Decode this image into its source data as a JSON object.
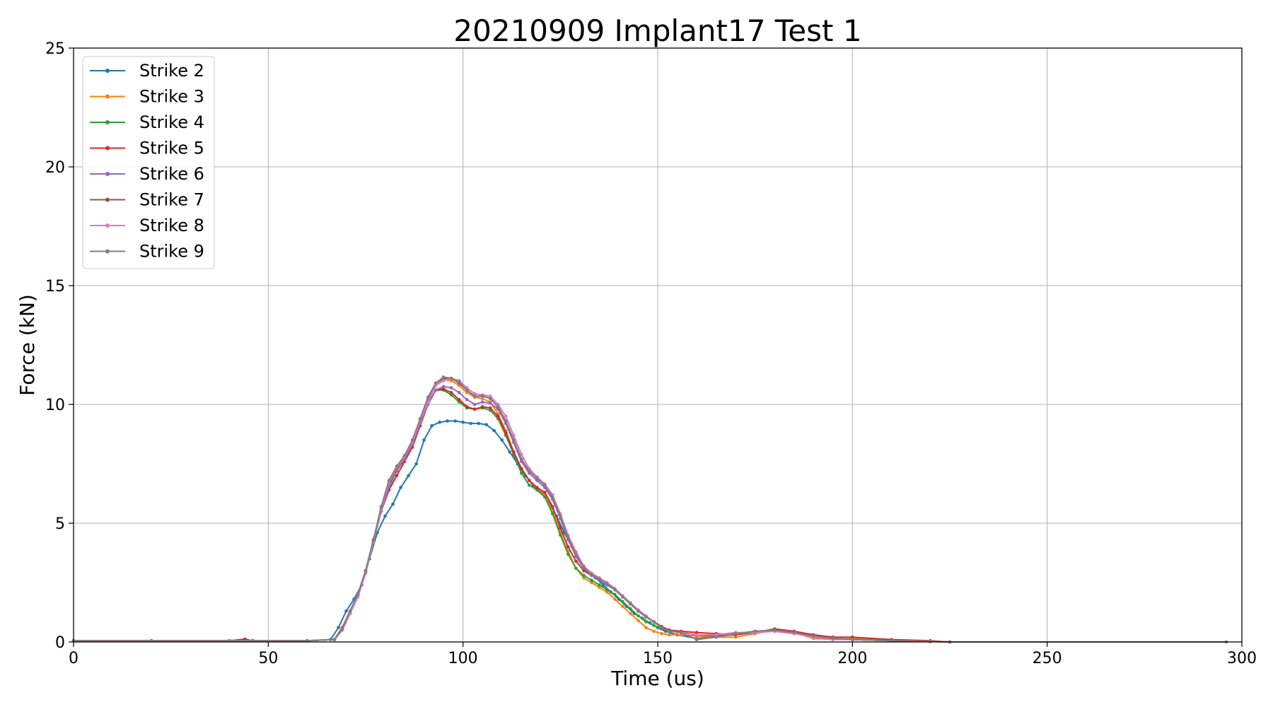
{
  "chart_data": {
    "type": "line",
    "title": "20210909 Implant17 Test 1",
    "xlabel": "Time (us)",
    "ylabel": "Force (kN)",
    "xlim": [
      0,
      300
    ],
    "ylim": [
      0,
      25
    ],
    "xticks": [
      0,
      50,
      100,
      150,
      200,
      250,
      300
    ],
    "yticks": [
      0,
      5,
      10,
      15,
      20,
      25
    ],
    "grid": true,
    "legend_position": "top-left",
    "markers": true,
    "series": [
      {
        "name": "Strike 2",
        "color": "#1f77b4",
        "x": [
          0,
          20,
          40,
          60,
          66,
          68,
          70,
          72,
          74,
          76,
          78,
          80,
          82,
          84,
          86,
          88,
          90,
          92,
          94,
          96,
          98,
          100,
          102,
          104,
          106,
          108,
          110,
          112,
          114,
          116,
          118,
          120,
          122,
          124,
          126,
          128,
          130,
          132,
          134,
          136,
          138,
          140,
          142,
          144,
          146,
          148,
          150,
          152,
          155,
          160,
          165,
          170,
          175,
          180,
          185,
          190,
          195,
          200,
          210,
          220,
          225
        ],
        "y": [
          0.05,
          0.05,
          0.05,
          0.05,
          0.1,
          0.6,
          1.3,
          1.8,
          2.4,
          3.5,
          4.6,
          5.3,
          5.8,
          6.5,
          7.0,
          7.5,
          8.5,
          9.1,
          9.25,
          9.3,
          9.3,
          9.25,
          9.2,
          9.2,
          9.15,
          8.9,
          8.5,
          8.0,
          7.5,
          7.0,
          6.6,
          6.3,
          5.9,
          5.3,
          4.6,
          4.0,
          3.4,
          3.0,
          2.7,
          2.4,
          2.1,
          1.8,
          1.5,
          1.2,
          1.0,
          0.8,
          0.6,
          0.45,
          0.3,
          0.15,
          0.2,
          0.35,
          0.4,
          0.5,
          0.4,
          0.25,
          0.15,
          0.1,
          0.05,
          0.02,
          0.0
        ]
      },
      {
        "name": "Strike 3",
        "color": "#ff7f0e",
        "x": [
          0,
          20,
          40,
          60,
          67,
          69,
          71,
          73,
          75,
          77,
          79,
          81,
          83,
          85,
          87,
          89,
          91,
          93,
          95,
          97,
          99,
          101,
          103,
          105,
          107,
          109,
          111,
          113,
          115,
          117,
          119,
          121,
          123,
          125,
          127,
          129,
          131,
          133,
          135,
          137,
          139,
          141,
          143,
          145,
          147,
          149,
          151,
          153,
          156,
          160,
          165,
          170,
          175,
          180,
          185,
          190,
          195,
          200,
          210,
          220,
          225
        ],
        "y": [
          0.05,
          0.05,
          0.05,
          0.05,
          0.1,
          0.5,
          1.2,
          2.0,
          3.0,
          4.2,
          5.5,
          6.6,
          7.3,
          7.8,
          8.4,
          9.4,
          10.2,
          10.8,
          11.05,
          11.0,
          10.8,
          10.5,
          10.3,
          10.25,
          10.1,
          9.6,
          8.9,
          8.0,
          7.3,
          6.8,
          6.5,
          6.2,
          5.5,
          4.6,
          3.8,
          3.1,
          2.7,
          2.5,
          2.3,
          2.1,
          1.8,
          1.5,
          1.2,
          0.9,
          0.6,
          0.45,
          0.35,
          0.3,
          0.3,
          0.25,
          0.2,
          0.2,
          0.35,
          0.5,
          0.4,
          0.15,
          0.1,
          0.15,
          0.05,
          0.02,
          0.0
        ]
      },
      {
        "name": "Strike 4",
        "color": "#2ca02c",
        "x": [
          0,
          20,
          40,
          60,
          67,
          69,
          71,
          73,
          75,
          77,
          79,
          81,
          83,
          85,
          87,
          89,
          91,
          93,
          95,
          97,
          99,
          101,
          103,
          105,
          107,
          109,
          111,
          113,
          115,
          117,
          119,
          121,
          123,
          125,
          127,
          129,
          131,
          133,
          135,
          137,
          139,
          141,
          143,
          145,
          147,
          149,
          151,
          153,
          156,
          160,
          165,
          170,
          175,
          180,
          185,
          190,
          195,
          200,
          210,
          220,
          225
        ],
        "y": [
          0.05,
          0.05,
          0.05,
          0.05,
          0.1,
          0.6,
          1.3,
          2.0,
          3.0,
          4.3,
          5.6,
          6.6,
          7.2,
          7.7,
          8.3,
          9.2,
          10.0,
          10.6,
          10.6,
          10.4,
          10.1,
          9.85,
          9.8,
          9.85,
          9.75,
          9.4,
          8.7,
          7.9,
          7.1,
          6.6,
          6.4,
          6.1,
          5.4,
          4.5,
          3.7,
          3.1,
          2.8,
          2.6,
          2.4,
          2.2,
          2.0,
          1.7,
          1.4,
          1.1,
          0.85,
          0.7,
          0.55,
          0.45,
          0.4,
          0.3,
          0.25,
          0.3,
          0.4,
          0.5,
          0.4,
          0.25,
          0.15,
          0.1,
          0.05,
          0.02,
          0.0
        ]
      },
      {
        "name": "Strike 5",
        "color": "#d62728",
        "x": [
          0,
          20,
          40,
          44,
          46,
          60,
          67,
          69,
          71,
          73,
          75,
          77,
          79,
          81,
          83,
          85,
          87,
          89,
          91,
          93,
          95,
          97,
          99,
          101,
          103,
          105,
          107,
          109,
          111,
          113,
          115,
          117,
          119,
          121,
          123,
          125,
          127,
          129,
          131,
          133,
          135,
          137,
          139,
          141,
          143,
          145,
          147,
          149,
          151,
          153,
          156,
          160,
          165,
          170,
          175,
          180,
          185,
          190,
          195,
          200,
          210,
          220,
          225
        ],
        "y": [
          0.05,
          0.05,
          0.05,
          0.12,
          0.05,
          0.05,
          0.1,
          0.6,
          1.3,
          2.0,
          3.0,
          4.3,
          5.5,
          6.4,
          7.0,
          7.6,
          8.2,
          9.1,
          10.0,
          10.6,
          10.65,
          10.5,
          10.2,
          9.9,
          9.8,
          9.9,
          9.85,
          9.5,
          8.8,
          8.0,
          7.3,
          6.8,
          6.5,
          6.3,
          5.7,
          4.8,
          4.0,
          3.4,
          3.0,
          2.8,
          2.6,
          2.4,
          2.2,
          1.9,
          1.6,
          1.3,
          1.05,
          0.85,
          0.65,
          0.5,
          0.45,
          0.4,
          0.35,
          0.3,
          0.4,
          0.55,
          0.45,
          0.3,
          0.2,
          0.2,
          0.1,
          0.05,
          0.0
        ]
      },
      {
        "name": "Strike 6",
        "color": "#9467bd",
        "x": [
          0,
          20,
          40,
          60,
          67,
          69,
          71,
          73,
          75,
          77,
          79,
          81,
          83,
          85,
          87,
          89,
          91,
          93,
          95,
          97,
          99,
          101,
          103,
          105,
          107,
          109,
          111,
          113,
          115,
          117,
          119,
          121,
          123,
          125,
          127,
          129,
          131,
          133,
          135,
          137,
          139,
          141,
          143,
          145,
          147,
          149,
          151,
          153,
          156,
          160,
          165,
          170,
          175,
          180,
          185,
          190,
          195,
          200,
          210,
          220,
          225
        ],
        "y": [
          0.05,
          0.05,
          0.05,
          0.05,
          0.1,
          0.5,
          1.2,
          1.9,
          2.9,
          4.2,
          5.5,
          6.5,
          7.2,
          7.7,
          8.3,
          9.2,
          10.0,
          10.6,
          10.75,
          10.7,
          10.5,
          10.2,
          10.0,
          10.1,
          10.05,
          9.8,
          9.2,
          8.4,
          7.6,
          7.1,
          6.8,
          6.5,
          6.0,
          5.2,
          4.3,
          3.6,
          3.1,
          2.8,
          2.6,
          2.4,
          2.2,
          1.9,
          1.6,
          1.3,
          1.05,
          0.85,
          0.6,
          0.45,
          0.4,
          0.3,
          0.25,
          0.35,
          0.4,
          0.45,
          0.35,
          0.25,
          0.15,
          0.1,
          0.05,
          0.02,
          0.0
        ]
      },
      {
        "name": "Strike 7",
        "color": "#8c564b",
        "x": [
          0,
          20,
          40,
          60,
          67,
          69,
          71,
          73,
          75,
          77,
          79,
          81,
          83,
          85,
          87,
          89,
          91,
          93,
          95,
          97,
          99,
          101,
          103,
          105,
          107,
          109,
          111,
          113,
          115,
          117,
          119,
          121,
          123,
          125,
          127,
          129,
          131,
          133,
          135,
          137,
          139,
          141,
          143,
          145,
          147,
          149,
          151,
          153,
          156,
          160,
          165,
          170,
          175,
          180,
          185,
          190,
          195,
          200,
          210,
          220,
          225
        ],
        "y": [
          0.05,
          0.05,
          0.05,
          0.05,
          0.1,
          0.55,
          1.25,
          1.95,
          2.95,
          4.25,
          5.6,
          6.7,
          7.4,
          7.8,
          8.4,
          9.3,
          10.2,
          10.9,
          11.1,
          11.1,
          10.9,
          10.6,
          10.35,
          10.35,
          10.25,
          9.9,
          9.3,
          8.5,
          7.7,
          7.2,
          6.9,
          6.6,
          6.1,
          5.3,
          4.4,
          3.7,
          3.15,
          2.85,
          2.65,
          2.45,
          2.2,
          1.9,
          1.6,
          1.3,
          1.05,
          0.85,
          0.6,
          0.45,
          0.4,
          0.3,
          0.25,
          0.35,
          0.45,
          0.5,
          0.4,
          0.25,
          0.15,
          0.1,
          0.05,
          0.02,
          0.0
        ]
      },
      {
        "name": "Strike 8",
        "color": "#e377c2",
        "x": [
          0,
          20,
          40,
          60,
          67,
          69,
          71,
          73,
          75,
          77,
          79,
          81,
          83,
          85,
          87,
          89,
          91,
          93,
          95,
          97,
          99,
          101,
          103,
          105,
          107,
          109,
          111,
          113,
          115,
          117,
          119,
          121,
          123,
          125,
          127,
          129,
          131,
          133,
          135,
          137,
          139,
          141,
          143,
          145,
          147,
          149,
          151,
          153,
          156,
          160,
          165,
          170,
          175,
          180,
          185,
          190,
          195,
          200,
          210,
          220,
          225
        ],
        "y": [
          0.05,
          0.05,
          0.05,
          0.05,
          0.1,
          0.5,
          1.2,
          1.9,
          2.9,
          4.2,
          5.6,
          6.7,
          7.4,
          7.8,
          8.4,
          9.3,
          10.1,
          10.8,
          11.0,
          11.1,
          11.0,
          10.7,
          10.45,
          10.4,
          10.35,
          10.0,
          9.5,
          8.7,
          7.9,
          7.3,
          6.95,
          6.65,
          6.2,
          5.4,
          4.5,
          3.8,
          3.2,
          2.9,
          2.7,
          2.5,
          2.25,
          1.95,
          1.65,
          1.35,
          1.1,
          0.85,
          0.6,
          0.45,
          0.4,
          0.3,
          0.3,
          0.4,
          0.4,
          0.45,
          0.35,
          0.2,
          0.1,
          0.1,
          0.05,
          0.02,
          0.0
        ]
      },
      {
        "name": "Strike 9",
        "color": "#7f7f7f",
        "x": [
          0,
          20,
          40,
          60,
          67,
          69,
          71,
          73,
          75,
          77,
          79,
          81,
          83,
          85,
          87,
          89,
          91,
          93,
          95,
          97,
          99,
          101,
          103,
          105,
          107,
          109,
          111,
          113,
          115,
          117,
          119,
          121,
          123,
          125,
          127,
          129,
          131,
          133,
          135,
          137,
          139,
          141,
          143,
          145,
          147,
          149,
          151,
          153,
          156,
          160,
          165,
          170,
          175,
          180,
          185,
          190,
          195,
          200,
          210,
          220,
          225,
          296
        ],
        "y": [
          0.05,
          0.05,
          0.05,
          0.05,
          0.1,
          0.55,
          1.3,
          2.0,
          3.0,
          4.3,
          5.7,
          6.8,
          7.4,
          7.85,
          8.5,
          9.4,
          10.3,
          10.9,
          11.15,
          11.1,
          10.95,
          10.6,
          10.35,
          10.35,
          10.25,
          9.9,
          9.3,
          8.5,
          7.7,
          7.2,
          6.9,
          6.6,
          6.1,
          5.3,
          4.4,
          3.7,
          3.15,
          2.85,
          2.65,
          2.45,
          2.2,
          1.9,
          1.6,
          1.3,
          1.05,
          0.85,
          0.6,
          0.45,
          0.4,
          0.1,
          0.2,
          0.35,
          0.45,
          0.5,
          0.4,
          0.25,
          0.15,
          0.1,
          0.05,
          0.02,
          0.0,
          0.0
        ]
      }
    ]
  }
}
